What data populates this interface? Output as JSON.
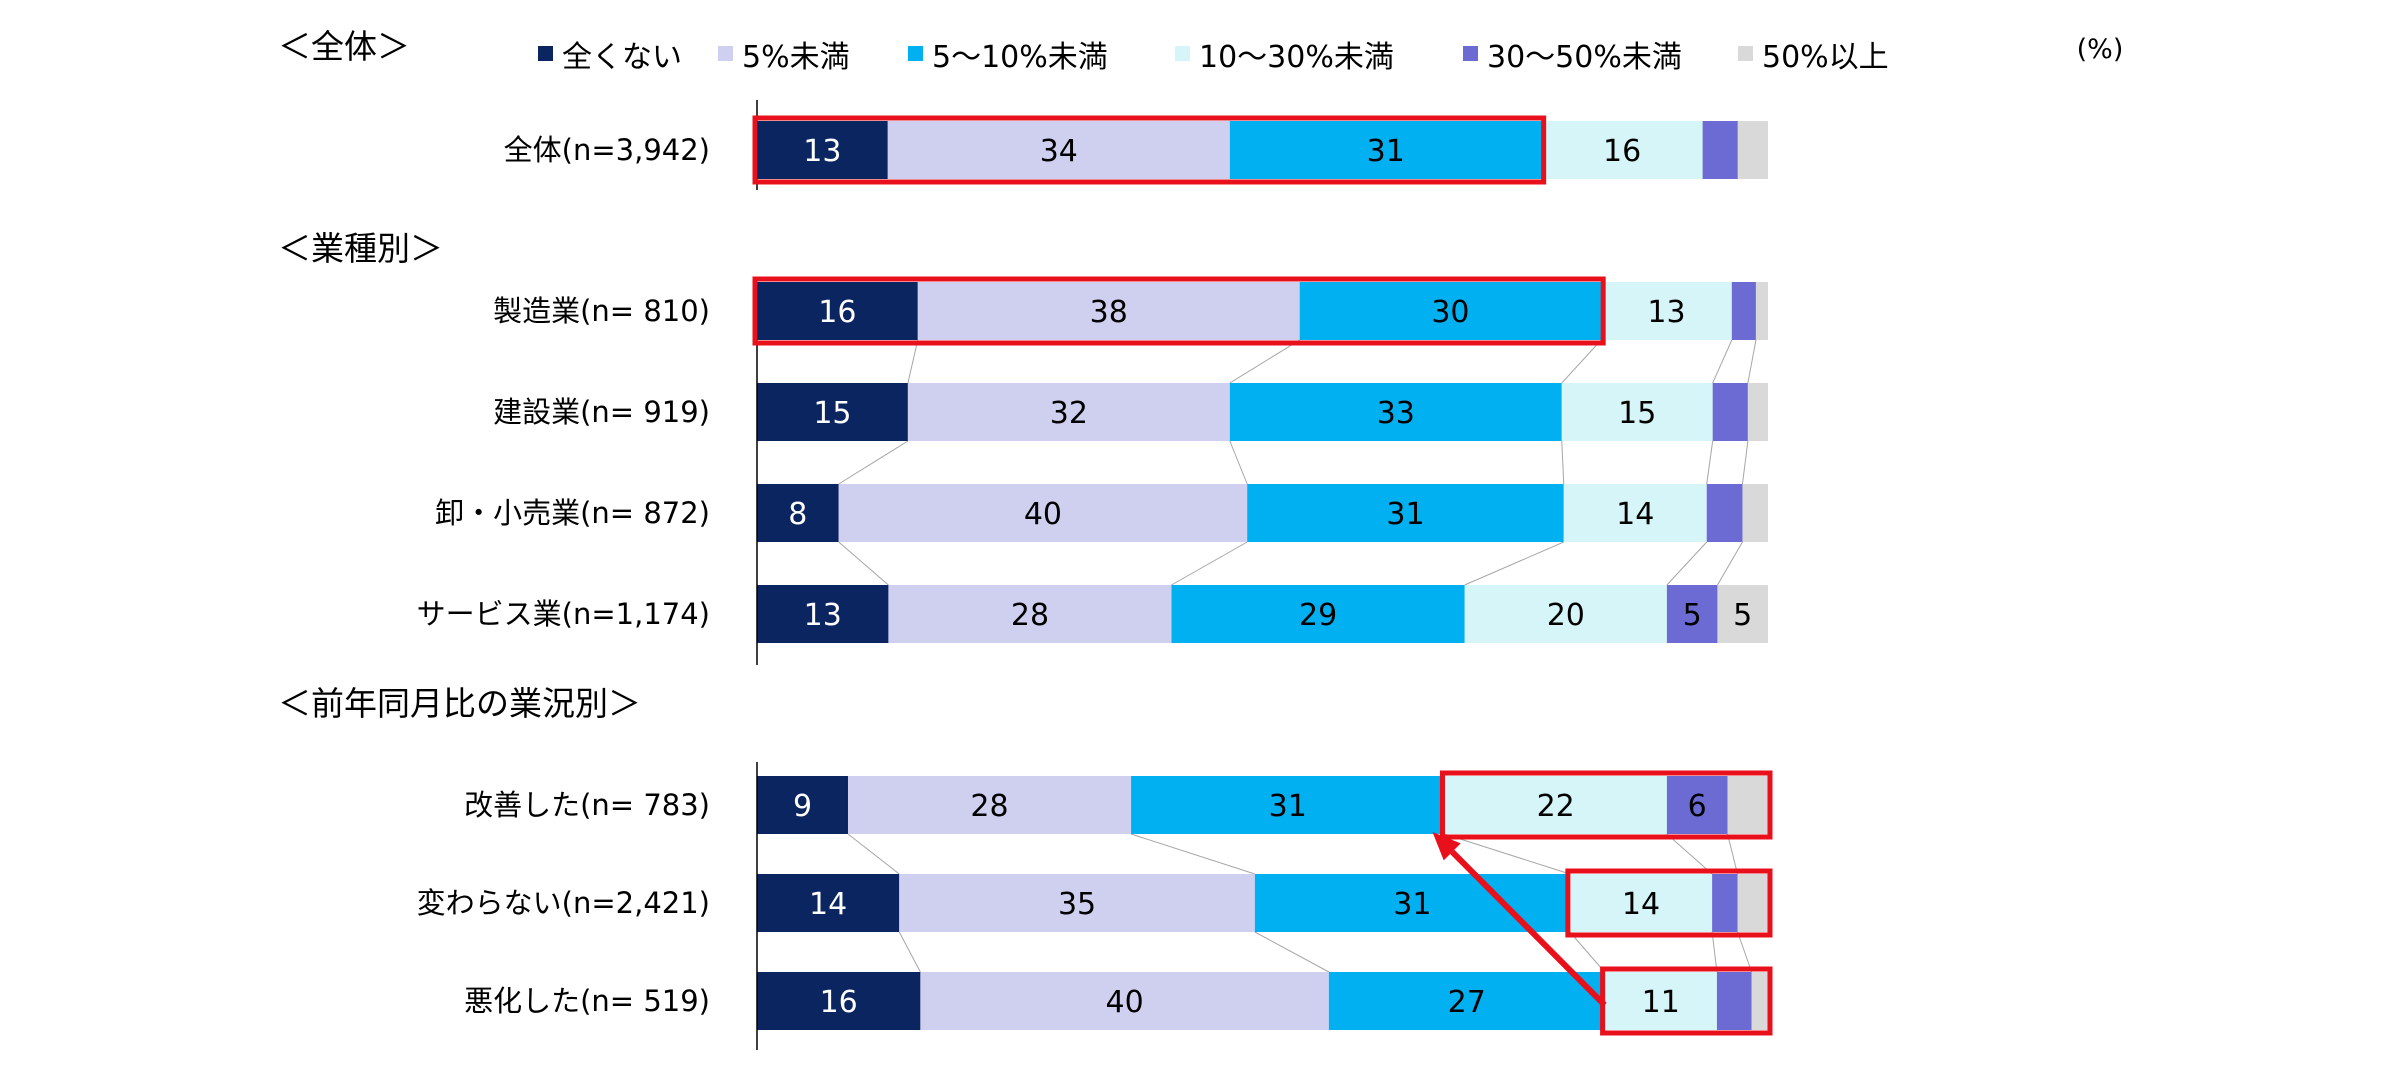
{
  "chart_data": {
    "type": "bar",
    "orientation": "horizontal",
    "stacked": "percent",
    "unit_label": "(%)",
    "xlim": [
      0,
      100
    ],
    "legend_position": "top",
    "series": [
      {
        "name": "全くない",
        "color": "#0b2561"
      },
      {
        "name": "5%未満",
        "color": "#cfd0f0"
      },
      {
        "name": "5～10%未満",
        "color": "#00b0f0"
      },
      {
        "name": "10～30%未満",
        "color": "#d5f5f8"
      },
      {
        "name": "30～50%未満",
        "color": "#6b6bd3"
      },
      {
        "name": "50%以上",
        "color": "#d9d9d9"
      }
    ],
    "groups": [
      {
        "title": "＜全体＞",
        "rows": [
          {
            "label": "全体(n=3,942)",
            "values": [
              13,
              34,
              31,
              16,
              3.5,
              3
            ]
          }
        ]
      },
      {
        "title": "＜業種別＞",
        "rows": [
          {
            "label": "製造業(n=  810)",
            "values": [
              16,
              38,
              30,
              13,
              2.4,
              1.2
            ]
          },
          {
            "label": "建設業(n=  919)",
            "values": [
              15,
              32,
              33,
              15,
              3.5,
              2
            ]
          },
          {
            "label": "卸・小売業(n=  872)",
            "values": [
              8,
              40,
              31,
              14,
              3.5,
              2.5
            ]
          },
          {
            "label": "サービス業(n=1,174)",
            "values": [
              13,
              28,
              29,
              20,
              5,
              5
            ]
          }
        ]
      },
      {
        "title": "＜前年同月比の業況別＞",
        "rows": [
          {
            "label": "改善した(n=  783)",
            "values": [
              9,
              28,
              31,
              22,
              6,
              4
            ]
          },
          {
            "label": "変わらない(n=2,421)",
            "values": [
              14,
              35,
              31,
              14,
              2.5,
              3
            ]
          },
          {
            "label": "悪化した(n=  519)",
            "values": [
              16,
              40,
              27,
              11,
              3.4,
              1.6
            ]
          }
        ]
      }
    ],
    "data_label_min": 5,
    "highlight_color": "#e8101a",
    "highlights": [
      {
        "row": "全体(n=3,942)",
        "from_series": 0,
        "to_series": 2
      },
      {
        "row": "製造業(n=  810)",
        "from_series": 0,
        "to_series": 2
      },
      {
        "row": "改善した(n=  783)",
        "from_series": 3,
        "to_series": 5
      },
      {
        "row": "変わらない(n=2,421)",
        "from_series": 3,
        "to_series": 5
      },
      {
        "row": "悪化した(n=  519)",
        "from_series": 3,
        "to_series": 5
      }
    ],
    "arrow": {
      "from_row": "悪化した(n=  519)",
      "from_series": 3,
      "to_row": "改善した(n=  783)",
      "to_series": 2
    }
  }
}
